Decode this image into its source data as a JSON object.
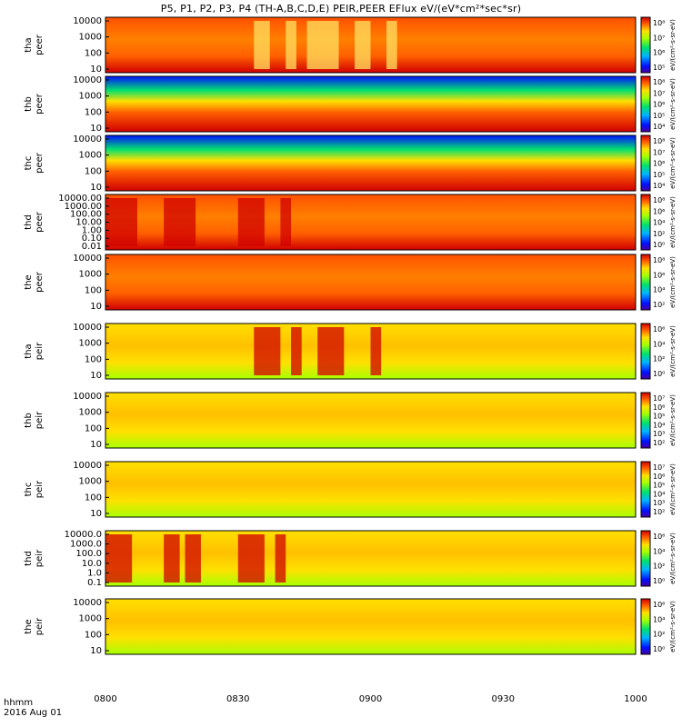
{
  "title": "P5, P1, P2, P3, P4 (TH-A,B,C,D,E) PEIR,PEER EFlux eV/(eV*cm²*sec*sr)",
  "time_axis_label": "hhmm",
  "date_label": "2016 Aug 01",
  "colorbar_unit": "eV/(cm²-s-sr-eV)",
  "chart_data": {
    "type": "heatmap",
    "x_range": [
      "0800",
      "1000"
    ],
    "x_ticks": [
      "0800",
      "0830",
      "0900",
      "0930",
      "1000"
    ],
    "panels": [
      {
        "name": "tha peer",
        "yticks": [
          "10",
          "100",
          "1000",
          "10000"
        ],
        "cbar_ticks": [
          "10⁵",
          "10⁶",
          "10⁷",
          "10⁸"
        ],
        "features": [
          [
            0.28,
            0.31
          ],
          [
            0.34,
            0.36
          ],
          [
            0.38,
            0.44
          ],
          [
            0.47,
            0.5
          ],
          [
            0.53,
            0.55
          ]
        ]
      },
      {
        "name": "thb peer",
        "yticks": [
          "10",
          "100",
          "1000",
          "10000"
        ],
        "cbar_ticks": [
          "10⁴",
          "10⁵",
          "10⁶",
          "10⁷",
          "10⁸"
        ],
        "features": []
      },
      {
        "name": "thc peer",
        "yticks": [
          "10",
          "100",
          "1000",
          "10000"
        ],
        "cbar_ticks": [
          "10⁴",
          "10⁵",
          "10⁶",
          "10⁷",
          "10⁸"
        ],
        "features": []
      },
      {
        "name": "thd peer",
        "yticks": [
          "0.01",
          "0.10",
          "1.00",
          "10.00",
          "100.00",
          "1000.00",
          "10000.00"
        ],
        "cbar_ticks": [
          "10⁰",
          "10²",
          "10⁴",
          "10⁶",
          "10⁸"
        ],
        "features": [
          [
            0.0,
            0.06
          ],
          [
            0.11,
            0.17
          ],
          [
            0.25,
            0.3
          ],
          [
            0.33,
            0.35
          ]
        ]
      },
      {
        "name": "the peer",
        "yticks": [
          "10",
          "100",
          "1000",
          "10000"
        ],
        "cbar_ticks": [
          "10²",
          "10⁴",
          "10⁶",
          "10⁸"
        ],
        "features": []
      },
      {
        "name": "tha peir",
        "yticks": [
          "10",
          "100",
          "1000",
          "10000"
        ],
        "cbar_ticks": [
          "10⁰",
          "10²",
          "10⁴",
          "10⁶"
        ],
        "features": [
          [
            0.28,
            0.33
          ],
          [
            0.35,
            0.37
          ],
          [
            0.4,
            0.45
          ],
          [
            0.5,
            0.52
          ]
        ]
      },
      {
        "name": "thb peir",
        "yticks": [
          "10",
          "100",
          "1000",
          "10000"
        ],
        "cbar_ticks": [
          "10²",
          "10³",
          "10⁴",
          "10⁵",
          "10⁶",
          "10⁷"
        ],
        "features": []
      },
      {
        "name": "thc peir",
        "yticks": [
          "10",
          "100",
          "1000",
          "10000"
        ],
        "cbar_ticks": [
          "10²",
          "10³",
          "10⁴",
          "10⁵",
          "10⁶",
          "10⁷"
        ],
        "features": []
      },
      {
        "name": "thd peir",
        "yticks": [
          "0.1",
          "1.0",
          "10.0",
          "100.0",
          "1000.0",
          "10000.0"
        ],
        "cbar_ticks": [
          "10⁰",
          "10²",
          "10⁴",
          "10⁶"
        ],
        "features": [
          [
            0.0,
            0.05
          ],
          [
            0.11,
            0.14
          ],
          [
            0.15,
            0.18
          ],
          [
            0.25,
            0.3
          ],
          [
            0.32,
            0.34
          ]
        ]
      },
      {
        "name": "the peir",
        "yticks": [
          "10",
          "100",
          "1000",
          "10000"
        ],
        "cbar_ticks": [
          "10⁰",
          "10²",
          "10⁴",
          "10⁶"
        ],
        "features": []
      }
    ]
  }
}
